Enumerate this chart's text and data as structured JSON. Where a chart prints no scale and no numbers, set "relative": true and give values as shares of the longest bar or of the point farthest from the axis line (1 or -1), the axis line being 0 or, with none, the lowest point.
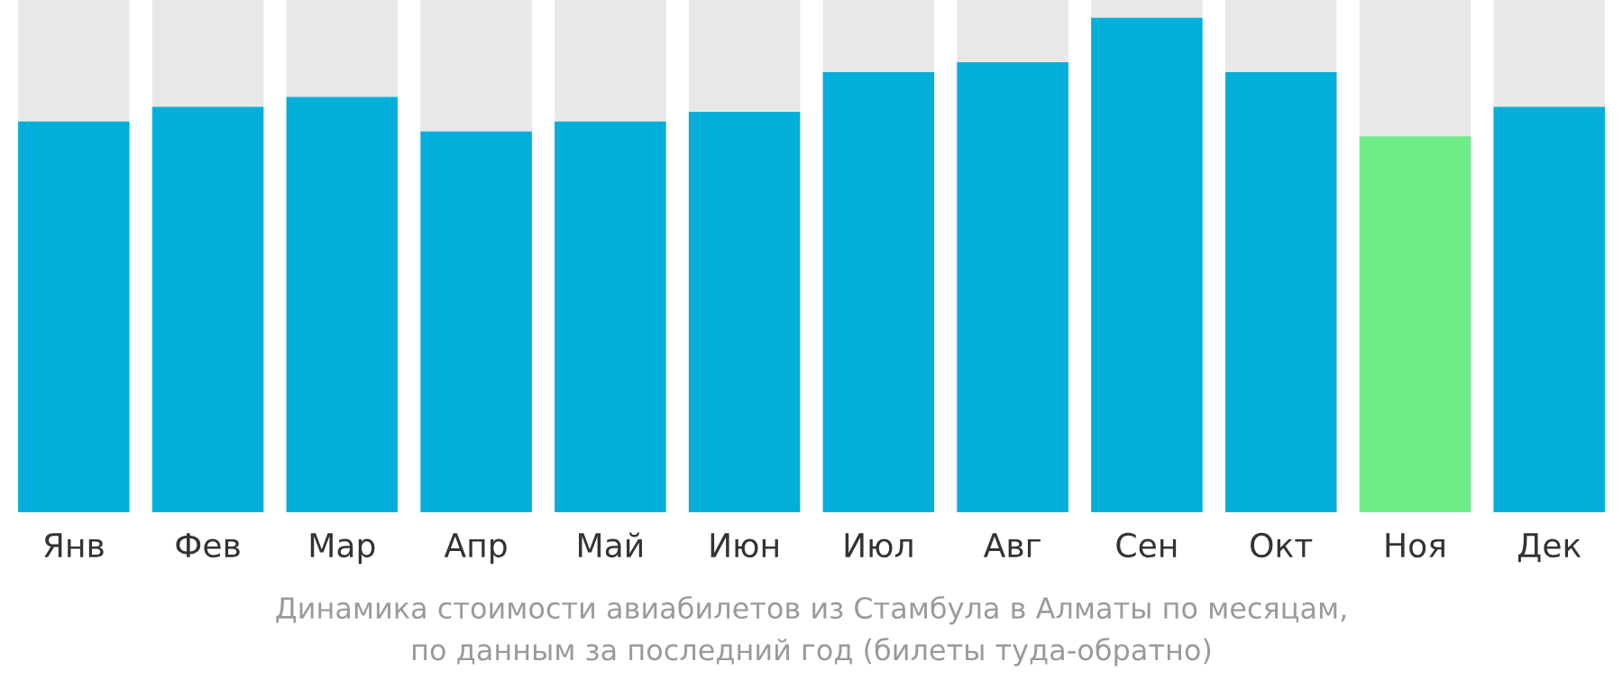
{
  "chart_data": {
    "type": "bar",
    "relative": true,
    "categories": [
      "Янв",
      "Фев",
      "Мар",
      "Апр",
      "Май",
      "Июн",
      "Июл",
      "Авг",
      "Сен",
      "Окт",
      "Ноя",
      "Дек"
    ],
    "values": [
      0.79,
      0.82,
      0.84,
      0.77,
      0.79,
      0.81,
      0.89,
      0.91,
      1,
      0.89,
      0.76,
      0.82
    ],
    "colors": [
      "#03afda",
      "#03afda",
      "#03afda",
      "#03afda",
      "#03afda",
      "#03afda",
      "#03afda",
      "#03afda",
      "#03afda",
      "#03afda",
      "#6eec88",
      "#03afda"
    ],
    "annotations": [
      "Динамика стоимости авиабилетов из Стамбула в Алматы по месяцам,\nпо данным за последний год (билеты туда-обратно)"
    ]
  }
}
